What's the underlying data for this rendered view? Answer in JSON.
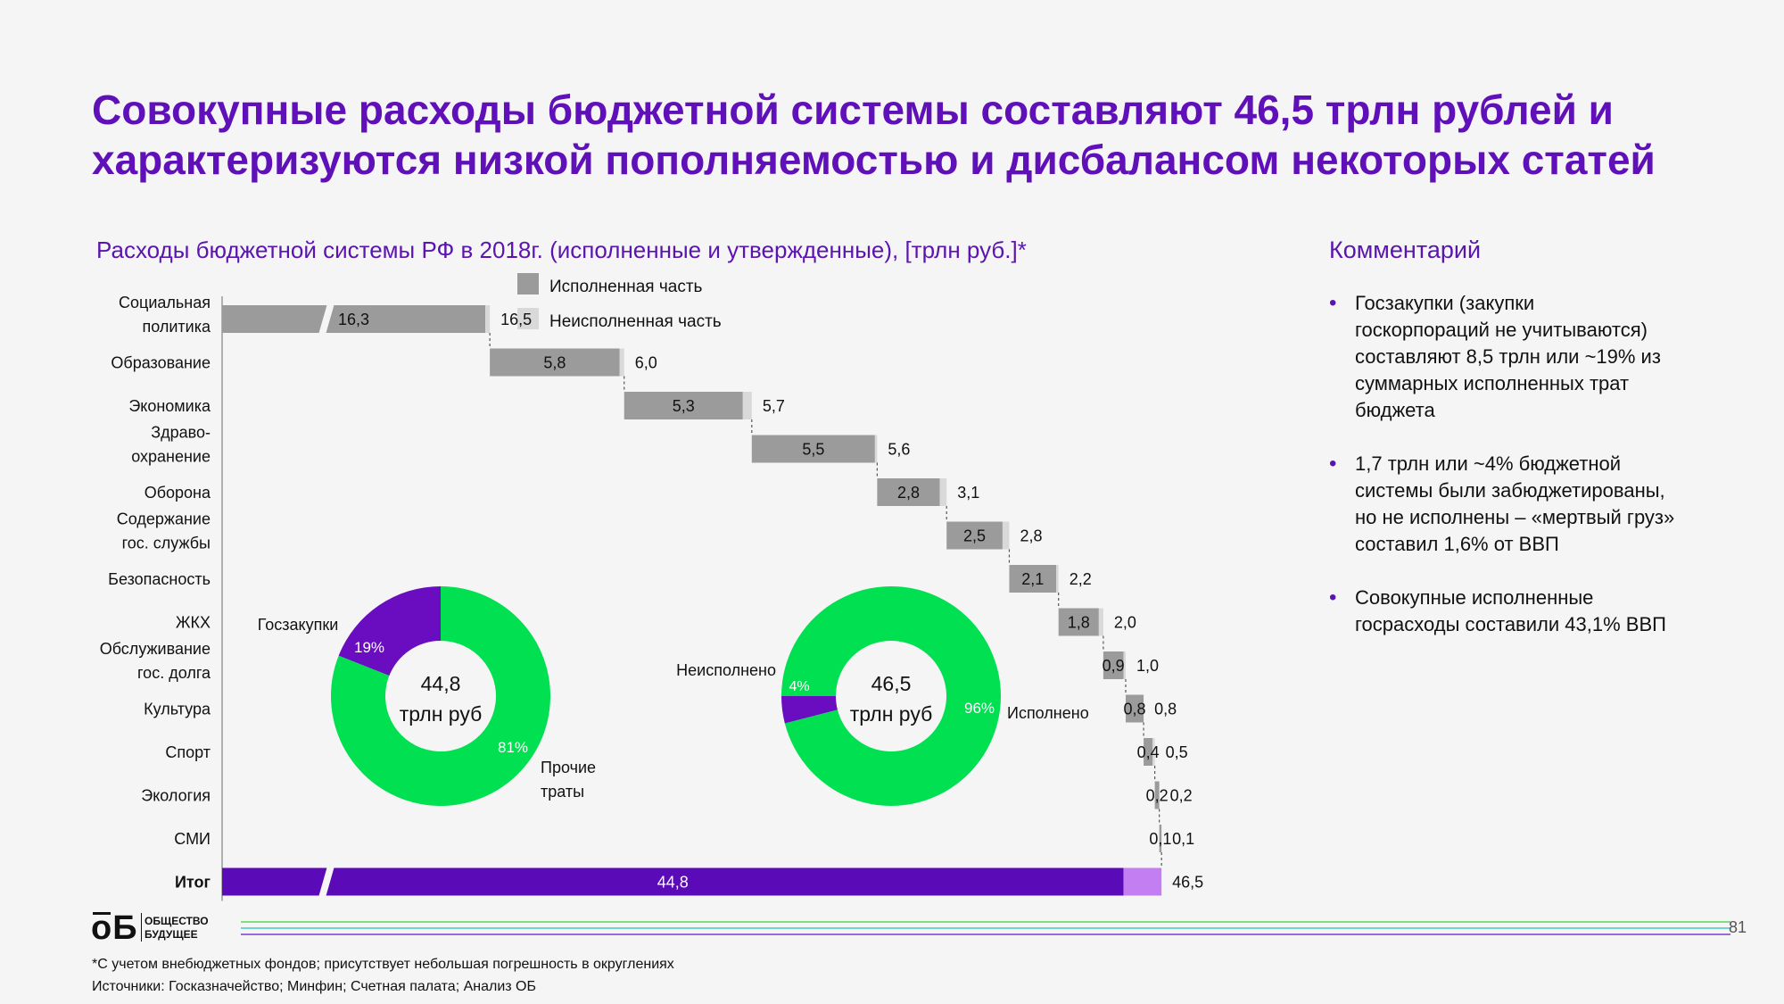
{
  "title": {
    "line1": "Совокупные расходы бюджетной системы составляют 46,5 трлн рублей и",
    "line2": "характеризуются низкой пополняемостью и дисбалансом некоторых статей"
  },
  "subtitle": "Расходы бюджетной системы РФ в 2018г. (исполненные и утвержденные), [трлн руб.]*",
  "legend": {
    "executed": "Исполненная часть",
    "unexecuted": "Неисполненная часть"
  },
  "colors": {
    "executed": "#9b9b9b",
    "unexecuted": "#d9d9d9",
    "total_executed": "#5b0ab8",
    "total_unexecuted": "#c37ef2",
    "donut_green": "#00e050",
    "donut_purple": "#6a0cbf",
    "title": "#6010b8"
  },
  "chart_data": [
    {
      "type": "waterfall",
      "title": "Расходы бюджетной системы РФ в 2018г. (исполненные и утвержденные), [трлн руб.]*",
      "categories": [
        "Социальная\nполитика",
        "Образование",
        "Экономика",
        "Здраво-\nохранение",
        "Оборона",
        "Содержание\nгос. службы",
        "Безопасность",
        "ЖКХ",
        "Обслуживание\nгос. долга",
        "Культура",
        "Спорт",
        "Экология",
        "СМИ",
        "Итог"
      ],
      "series": [
        {
          "name": "Исполненная часть",
          "values": [
            16.3,
            5.8,
            5.3,
            5.5,
            2.8,
            2.5,
            2.1,
            1.8,
            0.9,
            0.8,
            0.4,
            0.2,
            0.1,
            44.8
          ]
        },
        {
          "name": "Неисполненная часть",
          "values": [
            0.2,
            0.2,
            0.4,
            0.1,
            0.3,
            0.3,
            0.1,
            0.2,
            0.1,
            0.0,
            0.1,
            0.0,
            0.0,
            1.7
          ]
        }
      ],
      "executed_labels": [
        "16,3",
        "5,8",
        "5,3",
        "5,5",
        "2,8",
        "2,5",
        "2,1",
        "1,8",
        "0,9",
        "0,8",
        "0,4",
        "0,2",
        "0,1",
        "44,8"
      ],
      "total_labels": [
        "16,5",
        "6,0",
        "5,7",
        "5,6",
        "3,1",
        "2,8",
        "2,2",
        "2,0",
        "1,0",
        "0,8",
        "0,5",
        "0,2",
        "0,1",
        "46,5"
      ],
      "axis_break": true,
      "legend_position": "top"
    },
    {
      "type": "pie",
      "subtype": "donut",
      "center_label": [
        "44,8",
        "трлн руб"
      ],
      "slices": [
        {
          "label": "Госзакупки",
          "value": 19,
          "pct_label": "19%",
          "color": "#6a0cbf"
        },
        {
          "label": "Прочие\nтраты",
          "value": 81,
          "pct_label": "81%",
          "color": "#00e050"
        }
      ]
    },
    {
      "type": "pie",
      "subtype": "donut",
      "center_label": [
        "46,5",
        "трлн руб"
      ],
      "slices": [
        {
          "label": "Неисполнено",
          "value": 4,
          "pct_label": "4%",
          "color": "#6a0cbf"
        },
        {
          "label": "Исполнено",
          "value": 96,
          "pct_label": "96%",
          "color": "#00e050"
        }
      ]
    }
  ],
  "comment": {
    "heading": "Комментарий",
    "items": [
      "Госзакупки (закупки\nгоскорпораций не учитываются)\nсоставляют 8,5 трлн или ~19% из\nсуммарных исполненных трат\nбюджета",
      "1,7 трлн или ~4% бюджетной\nсистемы были забюджетированы,\nно не исполнены – «мертвый груз»\nсоставил 1,6% от ВВП",
      "Совокупные исполненные\nгосрасходы составили 43,1% ВВП"
    ]
  },
  "logo": {
    "mark": "оБ",
    "line1": "ОБЩЕСТВО",
    "line2": "БУДУЩЕЕ"
  },
  "page_number": "81",
  "footnote": {
    "line1": "*С учетом внебюджетных фондов; присутствует небольшая погрешность в округлениях",
    "line2": "Источники: Госказначейство; Минфин; Счетная палата; Анализ ОБ"
  }
}
